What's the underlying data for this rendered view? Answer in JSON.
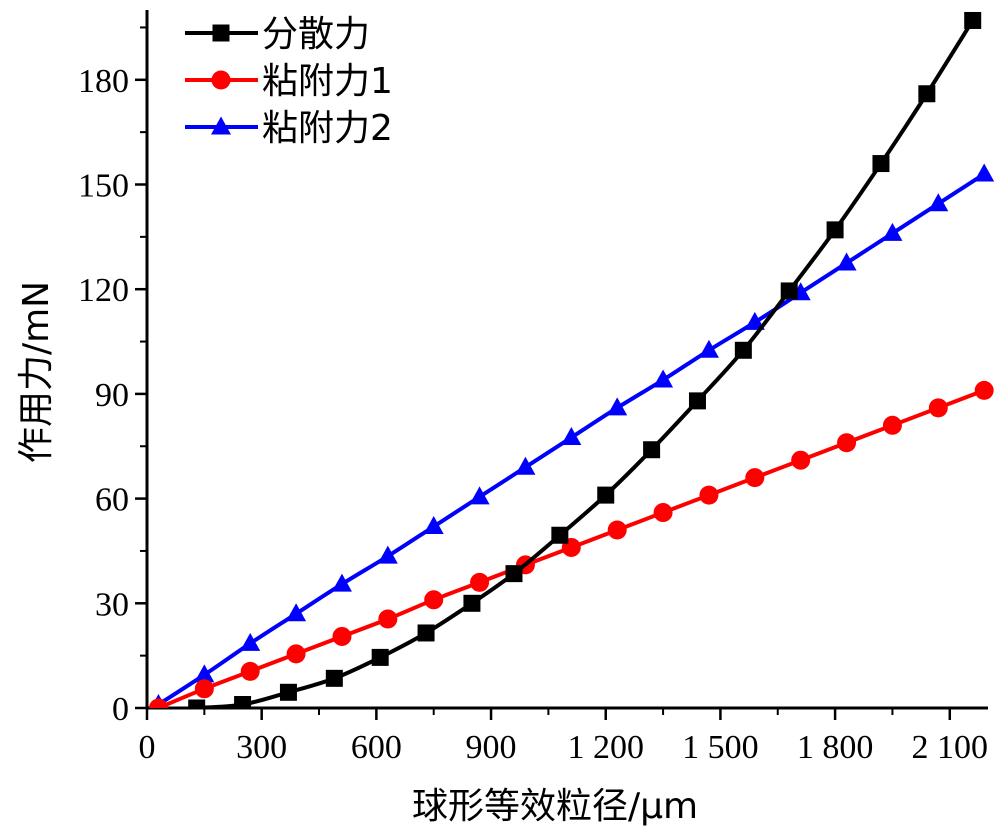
{
  "chart_data": {
    "type": "line",
    "title": "",
    "xlabel": "球形等效粒径/μm",
    "ylabel": "作用力/mN",
    "xlim": [
      0,
      2200
    ],
    "ylim": [
      0,
      200
    ],
    "x_ticks": [
      0,
      300,
      600,
      900,
      1200,
      1500,
      1800,
      2100
    ],
    "x_tick_labels": [
      "0",
      "300",
      "600",
      "900",
      "1 200",
      "1 500",
      "1 800",
      "2 100"
    ],
    "y_ticks": [
      0,
      30,
      60,
      90,
      120,
      150,
      180
    ],
    "y_tick_labels": [
      "0",
      "30",
      "60",
      "90",
      "120",
      "150",
      "180"
    ],
    "grid": false,
    "legend_position": "top-left",
    "series": [
      {
        "name": "分散力",
        "color": "#000000",
        "marker": "square",
        "x": [
          130,
          250,
          370,
          490,
          610,
          730,
          850,
          960,
          1080,
          1200,
          1320,
          1440,
          1560,
          1680,
          1800,
          1920,
          2040,
          2160
        ],
        "y": [
          0,
          1,
          4.5,
          8.5,
          14.5,
          21.5,
          30,
          38.5,
          49.5,
          61,
          74,
          88,
          102.5,
          119.5,
          137,
          156,
          176,
          197
        ]
      },
      {
        "name": "粘附力1",
        "color": "#ff0000",
        "marker": "circle",
        "x": [
          30,
          150,
          270,
          390,
          510,
          630,
          750,
          870,
          990,
          1110,
          1230,
          1350,
          1470,
          1590,
          1710,
          1830,
          1950,
          2070,
          2190
        ],
        "y": [
          0,
          5.5,
          10.5,
          15.5,
          20.5,
          25.5,
          31,
          36,
          41,
          46,
          51,
          56,
          61,
          66,
          71,
          76,
          81,
          86,
          91
        ]
      },
      {
        "name": "粘附力2",
        "color": "#0000ff",
        "marker": "triangle",
        "x": [
          30,
          150,
          270,
          390,
          510,
          630,
          750,
          870,
          990,
          1110,
          1230,
          1350,
          1470,
          1590,
          1710,
          1830,
          1950,
          2070,
          2190
        ],
        "y": [
          1,
          9.5,
          18.5,
          27,
          35.5,
          43.5,
          52,
          60.5,
          69,
          77.5,
          86,
          94,
          102.5,
          110.5,
          119,
          127.5,
          136,
          144.5,
          153
        ]
      }
    ]
  }
}
